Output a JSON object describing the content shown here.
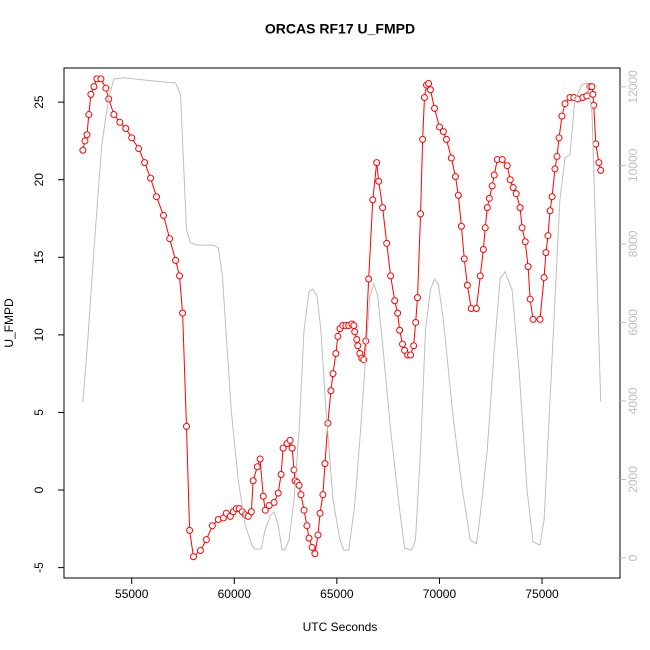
{
  "chart_data": {
    "type": "line",
    "title": "ORCAS RF17 U_FMPD",
    "x_label": "UTC Seconds",
    "y_label": "U_FMPD",
    "xlim": [
      51700,
      78800
    ],
    "ylim": [
      -5.67,
      27.2
    ],
    "y2lim": [
      -510,
      12480
    ],
    "xticks": [
      55000,
      60000,
      65000,
      70000,
      75000
    ],
    "yticks": [
      -5,
      0,
      5,
      10,
      15,
      20,
      25
    ],
    "y2ticks": [
      0,
      2000,
      4000,
      6000,
      8000,
      10000,
      12000
    ],
    "series": [
      {
        "color": "#ff0000",
        "marker": "circle",
        "x": [
          52620,
          52720,
          52820,
          52910,
          53010,
          53160,
          53300,
          53500,
          53740,
          53880,
          54130,
          54420,
          54710,
          55000,
          55340,
          55630,
          55920,
          56210,
          56550,
          56850,
          57140,
          57330,
          57480,
          57670,
          57820,
          58010,
          58350,
          58640,
          58930,
          59220,
          59470,
          59610,
          59810,
          59950,
          60100,
          60240,
          60390,
          60530,
          60680,
          60830,
          60920,
          61120,
          61260,
          61410,
          61510,
          61700,
          61940,
          62140,
          62280,
          62380,
          62570,
          62720,
          62820,
          62910,
          62960,
          63060,
          63160,
          63250,
          63400,
          63540,
          63640,
          63790,
          63930,
          64080,
          64180,
          64320,
          64420,
          64560,
          64710,
          64810,
          64950,
          65050,
          65150,
          65290,
          65440,
          65580,
          65730,
          65830,
          65870,
          65970,
          66020,
          66120,
          66210,
          66310,
          66410,
          66550,
          66750,
          66940,
          67040,
          67230,
          67430,
          67620,
          67820,
          67960,
          68060,
          68200,
          68300,
          68450,
          68590,
          68740,
          68840,
          68930,
          69080,
          69180,
          69270,
          69370,
          69470,
          69560,
          69760,
          70000,
          70190,
          70340,
          70580,
          70780,
          70920,
          71070,
          71210,
          71360,
          71550,
          71800,
          71990,
          72140,
          72230,
          72330,
          72430,
          72570,
          72670,
          72820,
          73060,
          73300,
          73450,
          73590,
          73740,
          73930,
          74030,
          74180,
          74320,
          74420,
          74560,
          74900,
          75100,
          75190,
          75290,
          75390,
          75490,
          75630,
          75730,
          75830,
          75970,
          76120,
          76360,
          76550,
          76750,
          76990,
          77180,
          77330,
          77430,
          77480,
          77520,
          77620,
          77770,
          77860
        ],
        "values": [
          21.9,
          22.5,
          22.9,
          24.2,
          25.5,
          26.0,
          26.5,
          26.5,
          25.9,
          25.2,
          24.2,
          23.7,
          23.3,
          22.7,
          22.0,
          21.1,
          20.1,
          18.9,
          17.7,
          16.2,
          14.8,
          13.8,
          11.4,
          4.1,
          -2.6,
          -4.3,
          -3.9,
          -3.2,
          -2.3,
          -1.9,
          -1.8,
          -1.5,
          -1.7,
          -1.4,
          -1.2,
          -1.2,
          -1.4,
          -1.6,
          -1.7,
          -1.4,
          0.6,
          1.5,
          2.0,
          -0.4,
          -1.3,
          -1.0,
          -0.8,
          -0.2,
          1.0,
          2.7,
          3.0,
          3.2,
          2.7,
          1.3,
          0.6,
          0.5,
          0.3,
          -0.3,
          -1.3,
          -2.3,
          -3.1,
          -3.7,
          -4.1,
          -2.9,
          -1.5,
          -0.3,
          1.7,
          4.3,
          6.4,
          7.5,
          8.8,
          9.9,
          10.4,
          10.6,
          10.6,
          10.6,
          10.7,
          10.6,
          10.2,
          9.7,
          9.3,
          8.8,
          8.5,
          8.4,
          9.6,
          13.6,
          18.7,
          21.1,
          19.9,
          18.2,
          15.9,
          13.8,
          12.2,
          11.4,
          10.3,
          9.4,
          9.0,
          8.7,
          8.7,
          9.3,
          10.8,
          12.4,
          17.8,
          22.6,
          25.3,
          26.1,
          26.2,
          25.8,
          24.6,
          23.4,
          23.1,
          22.6,
          21.4,
          20.2,
          19.0,
          17.0,
          14.9,
          13.2,
          11.7,
          11.7,
          13.8,
          15.5,
          16.9,
          18.2,
          18.8,
          19.6,
          20.3,
          21.3,
          21.3,
          20.9,
          20.0,
          19.5,
          19.1,
          18.2,
          16.9,
          16.0,
          14.4,
          12.3,
          11.0,
          11.0,
          13.7,
          15.3,
          16.4,
          18.0,
          18.9,
          20.7,
          21.5,
          22.7,
          24.1,
          24.9,
          25.3,
          25.3,
          25.2,
          25.3,
          25.4,
          26.0,
          26.0,
          25.5,
          24.8,
          22.3,
          21.1,
          20.6
        ]
      },
      {
        "color": "#bebebe",
        "axis": "y2",
        "x": [
          52620,
          52860,
          53160,
          53540,
          53880,
          54130,
          54610,
          56070,
          57140,
          57380,
          57670,
          57860,
          58200,
          58980,
          59220,
          59420,
          59560,
          59850,
          60190,
          60530,
          60870,
          61020,
          61310,
          61500,
          61750,
          61940,
          62140,
          62330,
          62480,
          62670,
          62910,
          63160,
          63400,
          63640,
          63830,
          64030,
          64220,
          64470,
          64810,
          65150,
          65340,
          65580,
          65870,
          66120,
          66360,
          66600,
          66800,
          66990,
          67230,
          67620,
          68060,
          68300,
          68640,
          68830,
          69080,
          69320,
          69560,
          69760,
          69950,
          70190,
          70680,
          71120,
          71500,
          71800,
          71990,
          72330,
          72670,
          72960,
          73200,
          73540,
          73880,
          74270,
          74560,
          74900,
          75100,
          75340,
          75630,
          75870,
          76120,
          76360,
          76600,
          76940,
          77180,
          77430,
          77670,
          77860
        ],
        "values": [
          3975,
          5550,
          7850,
          10520,
          11720,
          12200,
          12230,
          12150,
          12100,
          11800,
          8360,
          8030,
          7970,
          7970,
          7900,
          7210,
          6060,
          3770,
          1990,
          840,
          310,
          230,
          230,
          710,
          1070,
          1170,
          840,
          200,
          230,
          460,
          1480,
          3260,
          5810,
          6780,
          6850,
          6680,
          5810,
          3770,
          1480,
          460,
          200,
          200,
          1350,
          3010,
          4790,
          6650,
          6980,
          6680,
          5430,
          3260,
          1220,
          250,
          200,
          460,
          2750,
          5810,
          6830,
          7110,
          6960,
          6060,
          3520,
          1730,
          460,
          360,
          1100,
          2750,
          5300,
          7130,
          7290,
          6830,
          4790,
          1730,
          410,
          330,
          970,
          3520,
          6570,
          9120,
          10190,
          10270,
          11670,
          12050,
          12100,
          11410,
          7340,
          3975
        ]
      }
    ]
  }
}
